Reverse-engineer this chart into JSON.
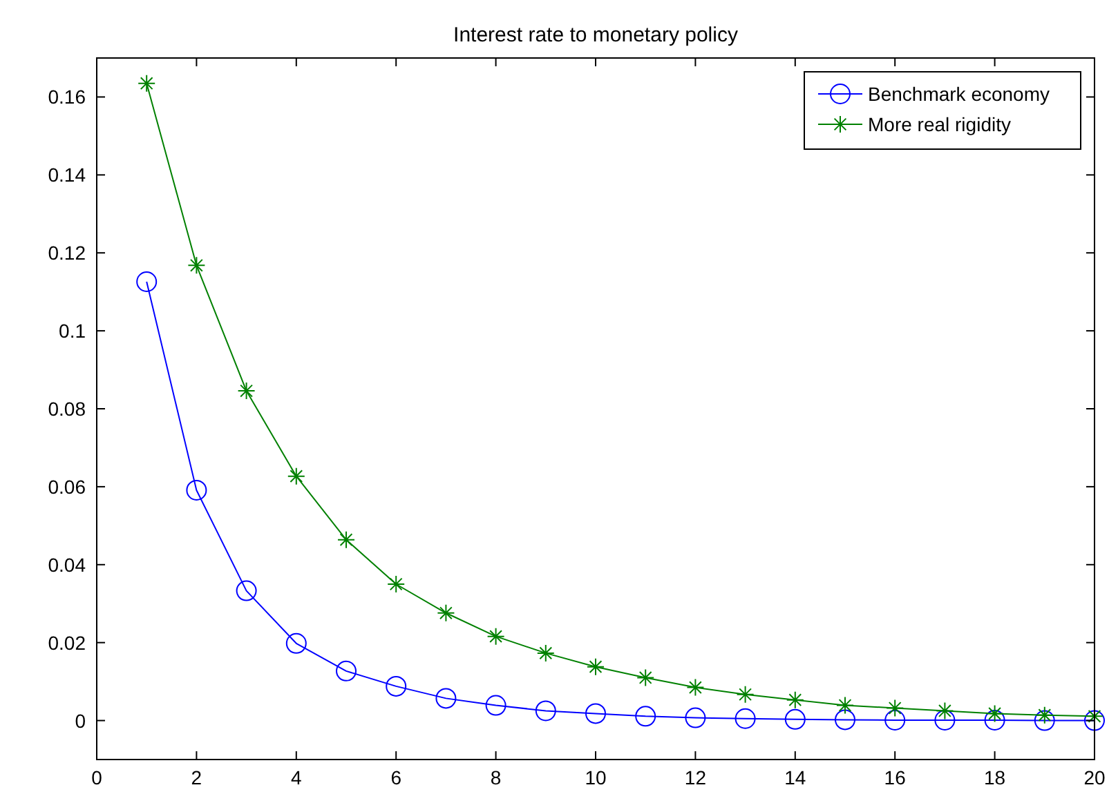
{
  "chart_data": {
    "type": "line",
    "title": "Interest rate to monetary policy",
    "x": [
      1,
      2,
      3,
      4,
      5,
      6,
      7,
      8,
      9,
      10,
      11,
      12,
      13,
      14,
      15,
      16,
      17,
      18,
      19,
      20
    ],
    "xlim": [
      0,
      20
    ],
    "xticks": [
      0,
      2,
      4,
      6,
      8,
      10,
      12,
      14,
      16,
      18,
      20
    ],
    "ylim": [
      -0.01,
      0.17
    ],
    "yticks": [
      0,
      0.02,
      0.04,
      0.06,
      0.08,
      0.1,
      0.12,
      0.14,
      0.16
    ],
    "grid": false,
    "legend": "top right",
    "line_style": "solid",
    "series": [
      {
        "name": "Benchmark economy",
        "color": "#0000ff",
        "marker": "circle",
        "values": [
          0.1126,
          0.0591,
          0.0333,
          0.0198,
          0.0127,
          0.0088,
          0.0057,
          0.0039,
          0.0025,
          0.0018,
          0.0011,
          0.0007,
          0.0005,
          0.0003,
          0.0002,
          0.0001,
          0.0001,
          0.0001,
          0,
          0
        ]
      },
      {
        "name": "More real rigidity",
        "color": "#008000",
        "marker": "cross",
        "values": [
          0.1635,
          0.1168,
          0.0846,
          0.0627,
          0.0464,
          0.035,
          0.0276,
          0.0216,
          0.0173,
          0.0138,
          0.011,
          0.0085,
          0.0067,
          0.0053,
          0.0039,
          0.0032,
          0.0025,
          0.0018,
          0.0014,
          0.0011
        ]
      }
    ]
  }
}
